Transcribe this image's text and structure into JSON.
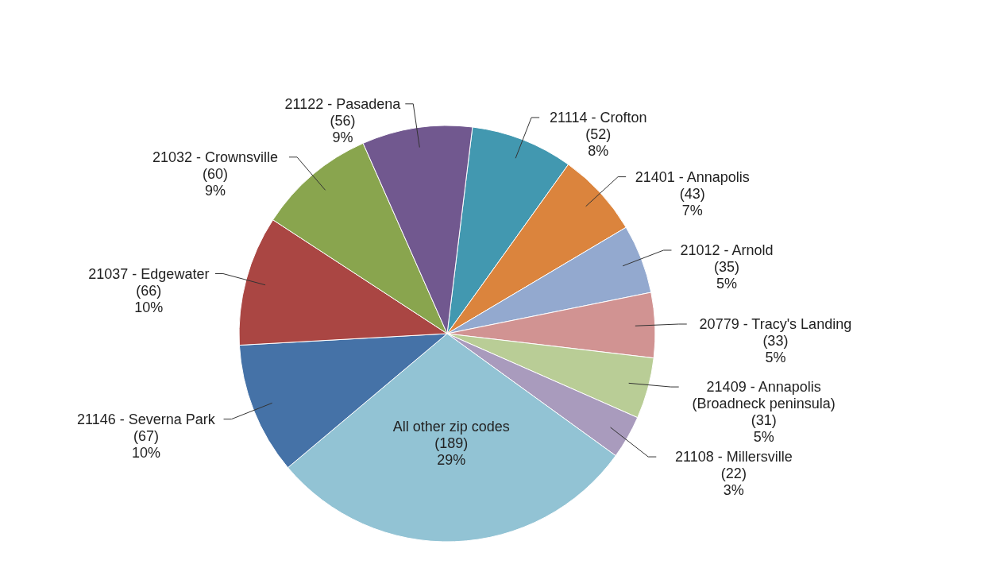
{
  "chart_data": {
    "type": "pie",
    "categories": [
      "21114 - Crofton",
      "21401 - Annapolis",
      "21012 - Arnold",
      "20779 - Tracy's Landing",
      "21409 - Annapolis (Broadneck  peninsula)",
      "21108 - Millersville",
      "All other zip codes",
      "21146 - Severna Park",
      "21037 - Edgewater",
      "21032 - Crownsville",
      "21122 - Pasadena"
    ],
    "values": [
      52,
      43,
      35,
      33,
      31,
      22,
      189,
      67,
      66,
      60,
      56
    ],
    "value_labels": [
      "(52)\n8%",
      "(43)\n7%",
      "(35)\n5%",
      "(33)\n5%",
      "(31)\n5%",
      "(22)\n3%",
      "(189)\n29%",
      "(67)\n10%",
      "(66)\n10%",
      "(60)\n9%",
      "(56)\n9%"
    ],
    "colors": [
      "#4298b0",
      "#db843d",
      "#93a9cf",
      "#d19392",
      "#b9cd96",
      "#a99bbd",
      "#92c3d4",
      "#4572a7",
      "#aa4643",
      "#89a54e",
      "#71588f"
    ],
    "legend": false
  }
}
